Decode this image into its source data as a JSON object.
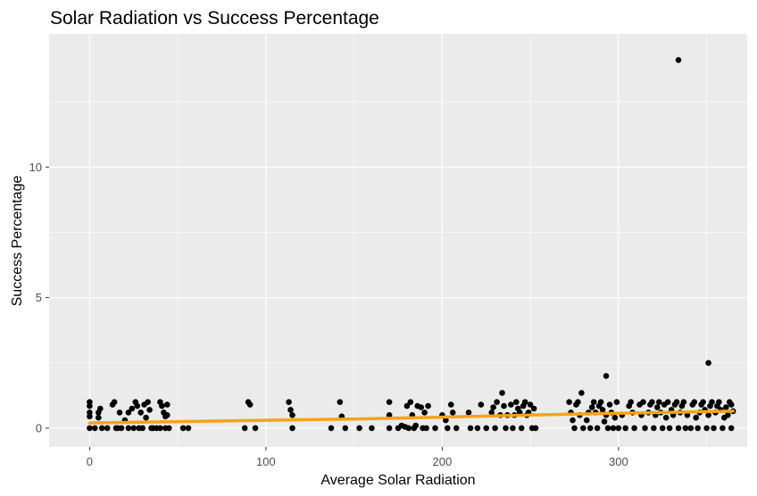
{
  "chart_data": {
    "type": "scatter",
    "title": "Solar Radiation vs Success Percentage",
    "xlabel": "Average Solar Radiation",
    "ylabel": "Success Percentage",
    "xlim": [
      -23,
      373
    ],
    "ylim": [
      -0.72,
      15.1
    ],
    "x_ticks": [
      0,
      100,
      200,
      300
    ],
    "x_minor_ticks": [
      50,
      150,
      250,
      350
    ],
    "y_ticks": [
      0,
      5,
      10
    ],
    "y_minor_ticks": [
      2.5,
      7.5,
      12.5
    ],
    "x_tick_labels": [
      "0",
      "100",
      "200",
      "300"
    ],
    "y_tick_labels": [
      "0",
      "5",
      "10"
    ],
    "grid": true,
    "background": "#EBEBEB",
    "grid_color": "#FFFFFF",
    "point_color": "#000000",
    "trend_color": "#F5A31A",
    "points": [
      [
        0,
        1.0
      ],
      [
        0,
        0.85
      ],
      [
        0,
        0.6
      ],
      [
        0,
        0.45
      ],
      [
        0,
        0
      ],
      [
        3,
        0
      ],
      [
        5,
        0.6
      ],
      [
        5,
        0.4
      ],
      [
        6,
        0.75
      ],
      [
        7,
        0
      ],
      [
        10,
        0
      ],
      [
        13,
        0.9
      ],
      [
        14,
        1.0
      ],
      [
        15,
        0
      ],
      [
        16,
        0
      ],
      [
        17,
        0.6
      ],
      [
        18,
        0
      ],
      [
        20,
        0.3
      ],
      [
        22,
        0
      ],
      [
        22,
        0.6
      ],
      [
        24,
        0.75
      ],
      [
        25,
        0
      ],
      [
        26,
        1.0
      ],
      [
        27,
        0.85
      ],
      [
        28,
        0
      ],
      [
        29,
        0.6
      ],
      [
        30,
        0
      ],
      [
        31,
        0.9
      ],
      [
        32,
        0.4
      ],
      [
        33,
        1.0
      ],
      [
        34,
        0.7
      ],
      [
        35,
        0
      ],
      [
        36,
        0
      ],
      [
        38,
        0
      ],
      [
        40,
        0
      ],
      [
        40,
        1.0
      ],
      [
        41,
        0.85
      ],
      [
        42,
        0.6
      ],
      [
        43,
        0.45
      ],
      [
        43,
        0
      ],
      [
        44,
        0.9
      ],
      [
        44,
        0.5
      ],
      [
        45,
        0
      ],
      [
        53,
        0
      ],
      [
        56,
        0
      ],
      [
        88,
        0
      ],
      [
        90,
        1.0
      ],
      [
        91,
        0.9
      ],
      [
        94,
        0
      ],
      [
        113,
        1.0
      ],
      [
        114,
        0.7
      ],
      [
        115,
        0.5
      ],
      [
        115,
        0
      ],
      [
        137,
        0
      ],
      [
        142,
        1.0
      ],
      [
        143,
        0.45
      ],
      [
        145,
        0
      ],
      [
        153,
        0
      ],
      [
        160,
        0
      ],
      [
        170,
        0
      ],
      [
        170,
        1.0
      ],
      [
        170,
        0.5
      ],
      [
        175,
        0
      ],
      [
        177,
        0.1
      ],
      [
        179,
        0.05
      ],
      [
        180,
        0.85
      ],
      [
        181,
        0
      ],
      [
        182,
        1.0
      ],
      [
        183,
        0.5
      ],
      [
        184,
        0
      ],
      [
        185,
        0.1
      ],
      [
        186,
        0.85
      ],
      [
        188,
        0.8
      ],
      [
        189,
        0
      ],
      [
        190,
        0.6
      ],
      [
        191,
        0
      ],
      [
        192,
        0.85
      ],
      [
        196,
        0
      ],
      [
        200,
        0.5
      ],
      [
        202,
        0.3
      ],
      [
        203,
        0
      ],
      [
        205,
        0.9
      ],
      [
        206,
        0.6
      ],
      [
        208,
        0
      ],
      [
        215,
        0.6
      ],
      [
        216,
        0
      ],
      [
        220,
        0
      ],
      [
        222,
        0.9
      ],
      [
        225,
        0
      ],
      [
        228,
        0.6
      ],
      [
        229,
        0.8
      ],
      [
        230,
        0
      ],
      [
        231,
        1.0
      ],
      [
        233,
        0.5
      ],
      [
        234,
        1.35
      ],
      [
        235,
        0.85
      ],
      [
        236,
        0
      ],
      [
        237,
        0.5
      ],
      [
        239,
        0.9
      ],
      [
        240,
        0
      ],
      [
        241,
        0.5
      ],
      [
        242,
        1.0
      ],
      [
        243,
        0.75
      ],
      [
        244,
        0.6
      ],
      [
        245,
        0
      ],
      [
        246,
        0.85
      ],
      [
        247,
        1.0
      ],
      [
        248,
        0.5
      ],
      [
        249,
        0.6
      ],
      [
        250,
        0.9
      ],
      [
        251,
        0
      ],
      [
        252,
        0.75
      ],
      [
        253,
        0
      ],
      [
        272,
        1.0
      ],
      [
        273,
        0.6
      ],
      [
        274,
        0.3
      ],
      [
        275,
        0
      ],
      [
        276,
        0.9
      ],
      [
        277,
        1.0
      ],
      [
        278,
        0.5
      ],
      [
        279,
        1.35
      ],
      [
        280,
        0
      ],
      [
        282,
        0.3
      ],
      [
        283,
        0.6
      ],
      [
        284,
        0
      ],
      [
        285,
        0.8
      ],
      [
        286,
        1.0
      ],
      [
        287,
        0.6
      ],
      [
        288,
        0
      ],
      [
        289,
        0.85
      ],
      [
        290,
        1.0
      ],
      [
        291,
        0.7
      ],
      [
        292,
        0.25
      ],
      [
        293,
        0.5
      ],
      [
        293,
        2.0
      ],
      [
        294,
        0
      ],
      [
        295,
        0.9
      ],
      [
        296,
        0.6
      ],
      [
        297,
        0
      ],
      [
        298,
        0.4
      ],
      [
        299,
        1.0
      ],
      [
        300,
        0
      ],
      [
        302,
        0.5
      ],
      [
        304,
        0
      ],
      [
        306,
        0.85
      ],
      [
        307,
        1.0
      ],
      [
        308,
        0.6
      ],
      [
        309,
        0
      ],
      [
        312,
        0.9
      ],
      [
        313,
        0.5
      ],
      [
        314,
        1.0
      ],
      [
        315,
        0
      ],
      [
        317,
        0.6
      ],
      [
        318,
        0.9
      ],
      [
        319,
        1.0
      ],
      [
        320,
        0
      ],
      [
        321,
        0.5
      ],
      [
        322,
        0.8
      ],
      [
        323,
        1.0
      ],
      [
        324,
        0.6
      ],
      [
        325,
        0
      ],
      [
        326,
        0.9
      ],
      [
        327,
        0.4
      ],
      [
        328,
        1.0
      ],
      [
        329,
        0
      ],
      [
        330,
        0.7
      ],
      [
        331,
        0.5
      ],
      [
        332,
        0.9
      ],
      [
        333,
        1.0
      ],
      [
        334,
        14.1
      ],
      [
        334,
        0
      ],
      [
        335,
        0.6
      ],
      [
        336,
        0.85
      ],
      [
        337,
        1.0
      ],
      [
        338,
        0
      ],
      [
        339,
        0.5
      ],
      [
        341,
        0
      ],
      [
        342,
        0.9
      ],
      [
        343,
        1.0
      ],
      [
        344,
        0.4
      ],
      [
        345,
        0
      ],
      [
        346,
        0.6
      ],
      [
        347,
        0.9
      ],
      [
        348,
        1.0
      ],
      [
        349,
        0.7
      ],
      [
        350,
        0
      ],
      [
        351,
        2.5
      ],
      [
        351,
        0.5
      ],
      [
        352,
        0.85
      ],
      [
        353,
        1.0
      ],
      [
        354,
        0
      ],
      [
        355,
        0.6
      ],
      [
        356,
        0.85
      ],
      [
        357,
        1.0
      ],
      [
        358,
        0.7
      ],
      [
        359,
        0
      ],
      [
        360,
        0.4
      ],
      [
        361,
        0.8
      ],
      [
        362,
        0.5
      ],
      [
        363,
        1.0
      ],
      [
        364,
        0
      ],
      [
        364,
        0.9
      ],
      [
        365,
        0.65
      ]
    ],
    "trend": [
      [
        0,
        0.2
      ],
      [
        50,
        0.25
      ],
      [
        100,
        0.3
      ],
      [
        150,
        0.35
      ],
      [
        200,
        0.42
      ],
      [
        250,
        0.5
      ],
      [
        300,
        0.57
      ],
      [
        365,
        0.65
      ]
    ]
  }
}
